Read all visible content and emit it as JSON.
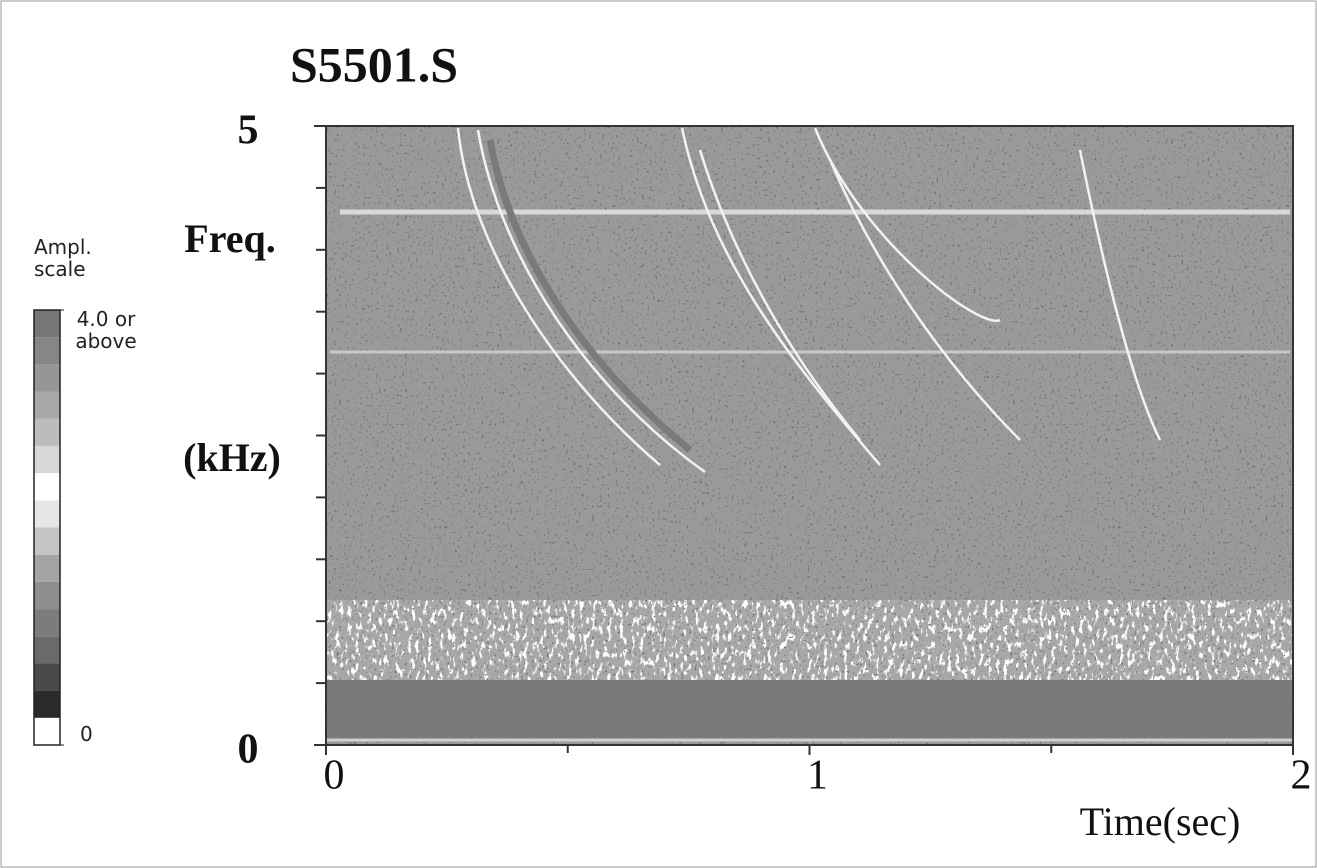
{
  "chart_data": {
    "type": "spectrogram",
    "title": "S5501.S",
    "xlabel": "Time(sec)",
    "ylabel_lines": [
      "Freq.",
      "(kHz)"
    ],
    "xlim": [
      0,
      2
    ],
    "xticks": [
      0,
      1,
      2
    ],
    "xminorticks": [
      0.5,
      1.5
    ],
    "ylim": [
      0,
      5
    ],
    "yticks": [
      0,
      5
    ],
    "yminorticks": [
      0.5,
      1,
      1.5,
      2,
      2.5,
      3,
      3.5,
      4,
      4.5
    ],
    "colorbar": {
      "title": "Ampl. scale",
      "lim": [
        0,
        4
      ],
      "ticks": [
        {
          "value": 0,
          "label": "0"
        },
        {
          "value": 4,
          "label": "4.0 or above"
        }
      ],
      "colors": [
        "#ffffff",
        "#2a2a2a",
        "#4a4a4a",
        "#6a6a6a",
        "#7c7c7c",
        "#8e8e8e",
        "#a4a4a4",
        "#c4c4c4",
        "#e6e6e6",
        "#ffffff",
        "#d8d8d8",
        "#bcbcbc",
        "#a8a8a8",
        "#969696",
        "#868686",
        "#767676"
      ]
    }
  }
}
